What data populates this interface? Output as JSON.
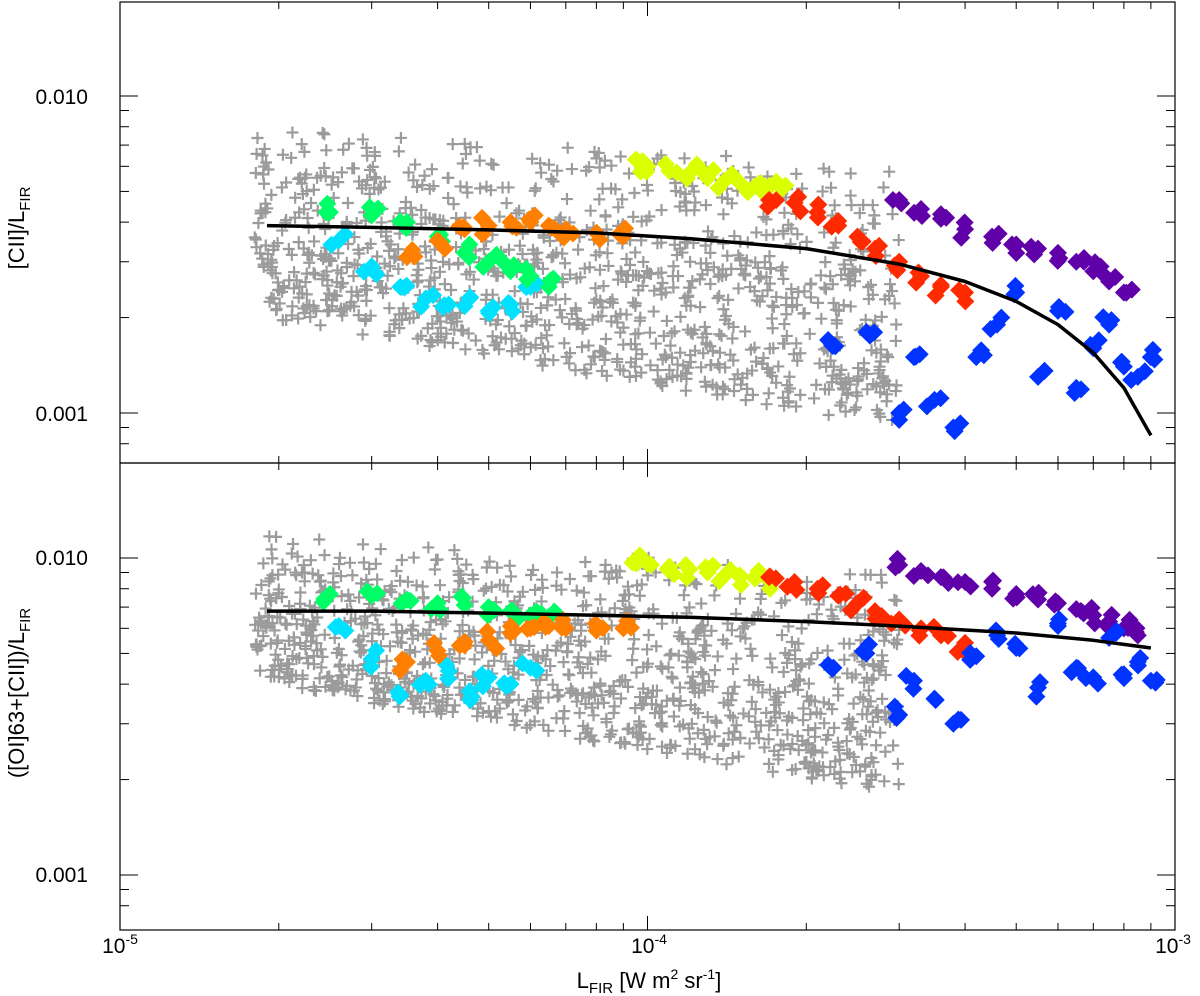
{
  "chart_data": [
    {
      "type": "scatter",
      "panel": "top",
      "ylabel_main": "[CII]/L",
      "ylabel_sub": "FIR",
      "xscale": "log",
      "yscale": "log",
      "xlim": [
        1e-05,
        0.001
      ],
      "ylim": [
        0.00075,
        0.02
      ],
      "yticks": [
        0.001,
        0.01
      ],
      "ytick_labels": [
        "0.001",
        "0.010"
      ],
      "grid": false,
      "fit_curve": {
        "color": "#000000",
        "x": [
          1.9e-05,
          3e-05,
          5e-05,
          8e-05,
          0.00012,
          0.0002,
          0.0003,
          0.0004,
          0.0005,
          0.0006,
          0.0007,
          0.0008,
          0.0009
        ],
        "y": [
          0.0039,
          0.00385,
          0.00378,
          0.0037,
          0.00355,
          0.0033,
          0.00295,
          0.0026,
          0.00225,
          0.0019,
          0.00155,
          0.0012,
          0.00085
        ]
      },
      "series": [
        {
          "color": "#9b9b9b",
          "marker": "plus",
          "x_range": [
            1.8e-05,
            0.0003
          ],
          "y_range": [
            0.0009,
            0.008
          ]
        },
        {
          "color": "#00e1ff",
          "marker": "diamond",
          "x": [
            2.6e-05,
            3e-05,
            3.4e-05,
            3.8e-05,
            4.2e-05,
            4.6e-05,
            5e-05,
            5.5e-05,
            6e-05
          ],
          "y": [
            0.0035,
            0.0029,
            0.0025,
            0.0023,
            0.0022,
            0.0023,
            0.0021,
            0.0022,
            0.0025
          ]
        },
        {
          "color": "#00ff66",
          "marker": "diamond",
          "x": [
            2.5e-05,
            3e-05,
            3.5e-05,
            4e-05,
            4.5e-05,
            5e-05,
            5.5e-05,
            6e-05,
            6.5e-05
          ],
          "y": [
            0.0043,
            0.0042,
            0.004,
            0.0036,
            0.0032,
            0.003,
            0.0028,
            0.0027,
            0.0025
          ]
        },
        {
          "color": "#ff8000",
          "marker": "diamond",
          "x": [
            3.5e-05,
            4e-05,
            4.5e-05,
            5e-05,
            5.5e-05,
            6e-05,
            6.5e-05,
            7e-05,
            8e-05,
            9e-05
          ],
          "y": [
            0.0031,
            0.0035,
            0.0038,
            0.0039,
            0.004,
            0.004,
            0.0039,
            0.0038,
            0.0037,
            0.0036
          ]
        },
        {
          "color": "#d9ff00",
          "marker": "diamond",
          "x": [
            9.5e-05,
            0.0001,
            0.00011,
            0.00012,
            0.00013,
            0.00014,
            0.00015,
            0.00016,
            0.00017,
            0.00018
          ],
          "y": [
            0.0063,
            0.006,
            0.0058,
            0.0057,
            0.0055,
            0.0054,
            0.0053,
            0.0052,
            0.0052,
            0.0051
          ]
        },
        {
          "color": "#ff2a00",
          "marker": "diamond",
          "x": [
            0.00017,
            0.00019,
            0.00021,
            0.00023,
            0.00025,
            0.00027,
            0.0003,
            0.00033,
            0.00036,
            0.0004
          ],
          "y": [
            0.0047,
            0.0046,
            0.0043,
            0.0039,
            0.0036,
            0.0033,
            0.003,
            0.0027,
            0.0025,
            0.0024
          ]
        },
        {
          "color": "#6000a8",
          "marker": "diamond",
          "x": [
            0.0003,
            0.00033,
            0.00036,
            0.0004,
            0.00045,
            0.0005,
            0.00055,
            0.0006,
            0.00065,
            0.0007,
            0.00075,
            0.0008
          ],
          "y": [
            0.0047,
            0.0044,
            0.0041,
            0.0038,
            0.0036,
            0.0034,
            0.0033,
            0.0032,
            0.003,
            0.0028,
            0.0026,
            0.0024
          ]
        },
        {
          "color": "#0033ff",
          "marker": "diamond",
          "x": [
            0.00022,
            0.00026,
            0.0003,
            0.00032,
            0.00035,
            0.00038,
            0.00042,
            0.00046,
            0.0005,
            0.00055,
            0.0006,
            0.00065,
            0.0007,
            0.00075,
            0.0008,
            0.00085,
            0.0009
          ],
          "y": [
            0.0017,
            0.0018,
            0.001,
            0.0015,
            0.0011,
            0.0009,
            0.0015,
            0.0019,
            0.0024,
            0.0013,
            0.0021,
            0.0012,
            0.0016,
            0.0019,
            0.0014,
            0.0013,
            0.0015
          ]
        }
      ]
    },
    {
      "type": "scatter",
      "panel": "bottom",
      "ylabel_main": "([OI]63+[CII])/L",
      "ylabel_sub": "FIR",
      "xlabel_main": "L",
      "xlabel_sub": "FIR",
      "xlabel_rest_1": " [W m",
      "xlabel_sup_1": "2",
      "xlabel_rest_2": " sr",
      "xlabel_sup_2": "-1",
      "xlabel_rest_3": "]",
      "xscale": "log",
      "yscale": "log",
      "xlim": [
        1e-05,
        0.001
      ],
      "ylim": [
        0.00075,
        0.02
      ],
      "xtick_base": "10",
      "xtick_exponents": [
        "-5",
        "-4",
        "-3"
      ],
      "yticks": [
        0.001,
        0.01
      ],
      "ytick_labels": [
        "0.001",
        "0.010"
      ],
      "grid": false,
      "fit_curve": {
        "color": "#000000",
        "x": [
          1.9e-05,
          3e-05,
          5e-05,
          8e-05,
          0.00012,
          0.0002,
          0.0003,
          0.0005,
          0.0007,
          0.0009
        ],
        "y": [
          0.0068,
          0.0068,
          0.0067,
          0.0066,
          0.0065,
          0.0063,
          0.0061,
          0.0058,
          0.0055,
          0.0052
        ]
      },
      "series": [
        {
          "color": "#9b9b9b",
          "marker": "plus",
          "x_range": [
            1.8e-05,
            0.0003
          ],
          "y_range": [
            0.0018,
            0.012
          ]
        },
        {
          "color": "#00e1ff",
          "marker": "diamond",
          "x": [
            2.6e-05,
            3e-05,
            3.4e-05,
            3.8e-05,
            4.2e-05,
            4.6e-05,
            5e-05,
            5.5e-05,
            6e-05
          ],
          "y": [
            0.0061,
            0.0048,
            0.0037,
            0.0041,
            0.0044,
            0.0038,
            0.0042,
            0.004,
            0.0045
          ]
        },
        {
          "color": "#00ff66",
          "marker": "diamond",
          "x": [
            2.5e-05,
            3e-05,
            3.5e-05,
            4e-05,
            4.5e-05,
            5e-05,
            5.5e-05,
            6e-05,
            6.5e-05
          ],
          "y": [
            0.0077,
            0.0076,
            0.0074,
            0.0072,
            0.0071,
            0.007,
            0.0068,
            0.0066,
            0.0065
          ]
        },
        {
          "color": "#ff8000",
          "marker": "diamond",
          "x": [
            3.5e-05,
            4e-05,
            4.5e-05,
            5e-05,
            5.5e-05,
            6e-05,
            6.5e-05,
            7e-05,
            8e-05,
            9e-05
          ],
          "y": [
            0.0047,
            0.0051,
            0.0053,
            0.0055,
            0.0058,
            0.006,
            0.0061,
            0.006,
            0.0059,
            0.006
          ]
        },
        {
          "color": "#d9ff00",
          "marker": "diamond",
          "x": [
            9.5e-05,
            0.0001,
            0.00011,
            0.00012,
            0.00013,
            0.00014,
            0.00015,
            0.00016,
            0.00017
          ],
          "y": [
            0.0098,
            0.0096,
            0.0094,
            0.0092,
            0.009,
            0.0088,
            0.0087,
            0.0086,
            0.0085
          ]
        },
        {
          "color": "#ff2a00",
          "marker": "diamond",
          "x": [
            0.00017,
            0.00019,
            0.00021,
            0.00023,
            0.00025,
            0.00027,
            0.0003,
            0.00033,
            0.00036,
            0.0004
          ],
          "y": [
            0.0087,
            0.0084,
            0.008,
            0.0076,
            0.0072,
            0.0068,
            0.0064,
            0.006,
            0.0057,
            0.0054
          ]
        },
        {
          "color": "#6000a8",
          "marker": "diamond",
          "x": [
            0.0003,
            0.00033,
            0.00036,
            0.0004,
            0.00045,
            0.0005,
            0.00055,
            0.0006,
            0.00065,
            0.0007,
            0.00075,
            0.0008,
            0.00085
          ],
          "y": [
            0.0095,
            0.0091,
            0.0087,
            0.0084,
            0.008,
            0.0077,
            0.0074,
            0.0072,
            0.0069,
            0.0066,
            0.0063,
            0.006,
            0.0057
          ]
        },
        {
          "color": "#0033ff",
          "marker": "diamond",
          "x": [
            0.00022,
            0.00026,
            0.0003,
            0.00032,
            0.00035,
            0.00038,
            0.00042,
            0.00046,
            0.0005,
            0.00055,
            0.0006,
            0.00065,
            0.0007,
            0.00075,
            0.0008,
            0.00085,
            0.0009
          ],
          "y": [
            0.0046,
            0.005,
            0.0032,
            0.0041,
            0.0036,
            0.003,
            0.0049,
            0.0057,
            0.0052,
            0.0039,
            0.0061,
            0.0045,
            0.0042,
            0.0056,
            0.0043,
            0.0047,
            0.0041
          ]
        }
      ]
    }
  ]
}
